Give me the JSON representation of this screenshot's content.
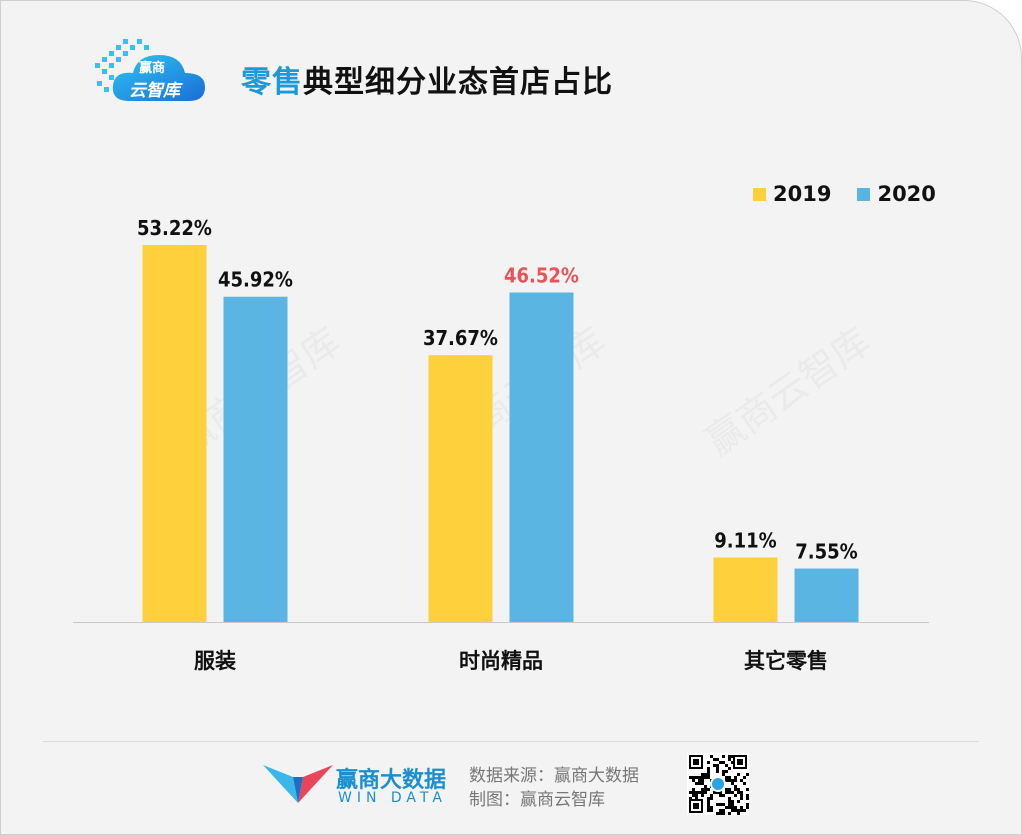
{
  "header": {
    "logo_line1": "赢商",
    "logo_line2": "云智库",
    "title_highlight": "零售",
    "title_rest": "典型细分业态首店占比"
  },
  "watermark_text": "赢商云智库",
  "chart_data": {
    "type": "bar",
    "title": "零售典型细分业态首店占比",
    "categories": [
      "服装",
      "时尚精品",
      "其它零售"
    ],
    "series": [
      {
        "name": "2019",
        "color": "#fed13c",
        "values": [
          53.22,
          37.67,
          9.11
        ],
        "labels": [
          "53.22%",
          "37.67%",
          "9.11%"
        ]
      },
      {
        "name": "2020",
        "color": "#5ab5e3",
        "values": [
          45.92,
          46.52,
          7.55
        ],
        "labels": [
          "45.92%",
          "46.52%",
          "7.55%"
        ]
      }
    ],
    "label_highlight_color": "#e8545a",
    "highlighted_label": {
      "series": 1,
      "index": 1
    },
    "unit": "%",
    "ylim": [
      0,
      60
    ],
    "grid": false,
    "legend": "top-right"
  },
  "footer": {
    "brand_cn": "赢商大数据",
    "brand_en": "WIN DATA",
    "source_line": "数据来源：赢商大数据",
    "made_by_line": "制图：赢商云智库"
  }
}
